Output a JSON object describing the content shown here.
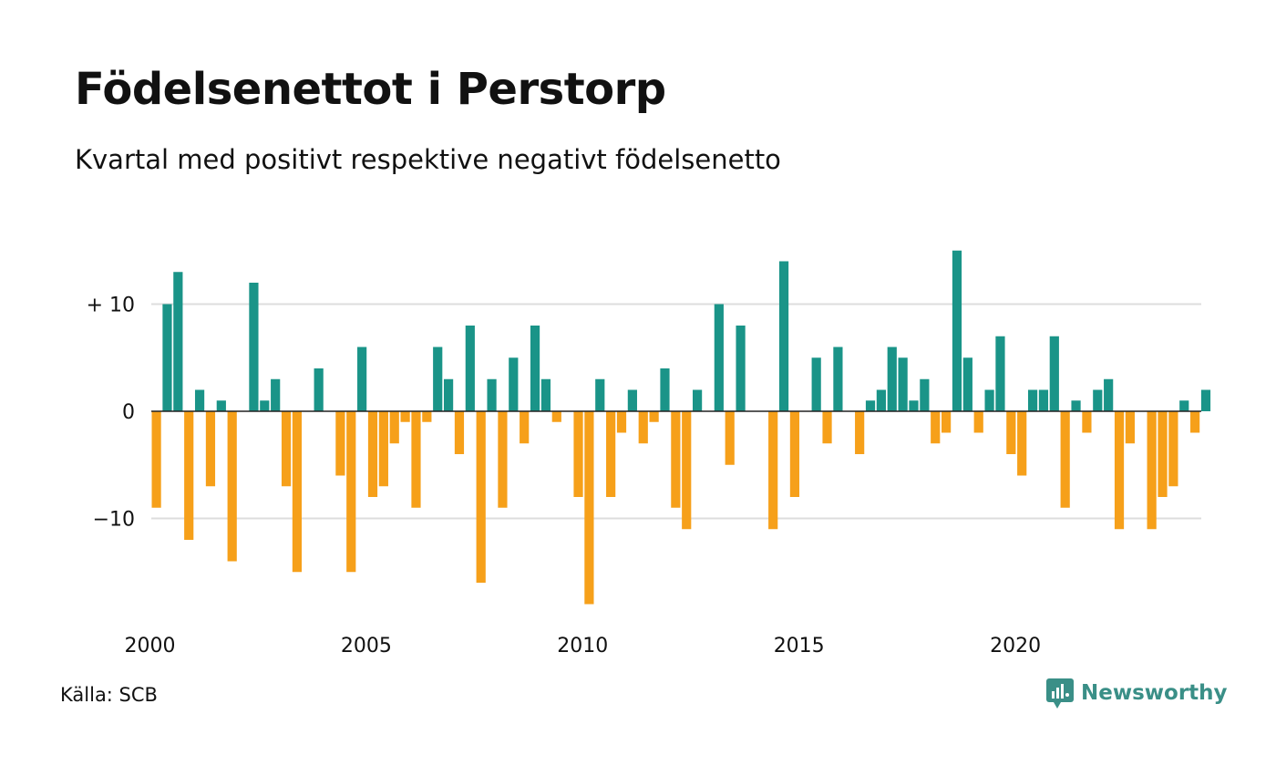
{
  "title": "Födelsenettot i Perstorp",
  "subtitle": "Kvartal med positivt respektive negativt födelsenetto",
  "source": "Källa: SCB",
  "brand": {
    "name": "Newsworthy",
    "icon": "newsworthy-logo-icon",
    "color": "#3a8f87"
  },
  "colors": {
    "positive": "#1a9488",
    "negative": "#f6a01a",
    "grid": "#dddddd",
    "zero_line": "#222222"
  },
  "chart_data": {
    "type": "bar",
    "title": "Födelsenettot i Perstorp",
    "subtitle": "Kvartal med positivt respektive negativt födelsenetto",
    "x_start": 2000,
    "periods_per_year": 4,
    "values": [
      -9,
      10,
      13,
      -12,
      2,
      -7,
      1,
      -14,
      0,
      12,
      1,
      3,
      -7,
      -15,
      0,
      4,
      0,
      -6,
      -15,
      6,
      -8,
      -7,
      -3,
      -1,
      -9,
      -1,
      6,
      3,
      -4,
      8,
      -16,
      3,
      -9,
      5,
      -3,
      8,
      3,
      -1,
      0,
      -8,
      -18,
      3,
      -8,
      -2,
      2,
      -3,
      -1,
      4,
      -9,
      -11,
      2,
      0,
      10,
      -5,
      8,
      0,
      0,
      -11,
      14,
      -8,
      0,
      5,
      -3,
      6,
      0,
      -4,
      1,
      2,
      6,
      5,
      1,
      3,
      -3,
      -2,
      15,
      5,
      -2,
      2,
      7,
      -4,
      -6,
      2,
      2,
      7,
      -9,
      1,
      -2,
      2,
      3,
      -11,
      -3,
      0,
      -11,
      -8,
      -7,
      1,
      -2,
      2
    ],
    "x_ticks": [
      "2000",
      "2005",
      "2010",
      "2015",
      "2020"
    ],
    "y_ticks": [
      {
        "value": 10,
        "label": "+ 10"
      },
      {
        "value": 0,
        "label": "0"
      },
      {
        "value": -10,
        "label": "−10"
      }
    ],
    "ylim": [
      -19,
      16
    ],
    "grid": true,
    "legend": "none"
  }
}
